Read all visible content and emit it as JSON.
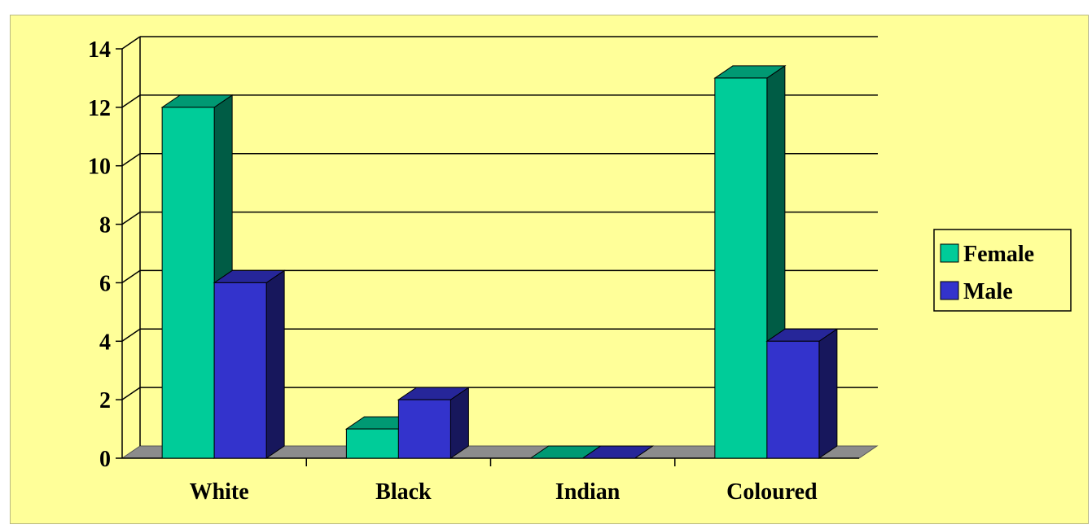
{
  "chart_data": {
    "type": "bar",
    "style": "3d-clustered-column",
    "title": "",
    "xlabel": "",
    "ylabel": "",
    "categories": [
      "White",
      "Black",
      "Indian",
      "Coloured"
    ],
    "series": [
      {
        "name": "Female",
        "values": [
          12,
          1,
          0,
          13
        ],
        "color": "#00cc99"
      },
      {
        "name": "Male",
        "values": [
          6,
          2,
          0,
          4
        ],
        "color": "#3333cc"
      }
    ],
    "ylim": [
      0,
      14
    ],
    "yticks": [
      0,
      2,
      4,
      6,
      8,
      10,
      12,
      14
    ],
    "grid": true,
    "legend": "right",
    "background_color": "#ffff99"
  }
}
